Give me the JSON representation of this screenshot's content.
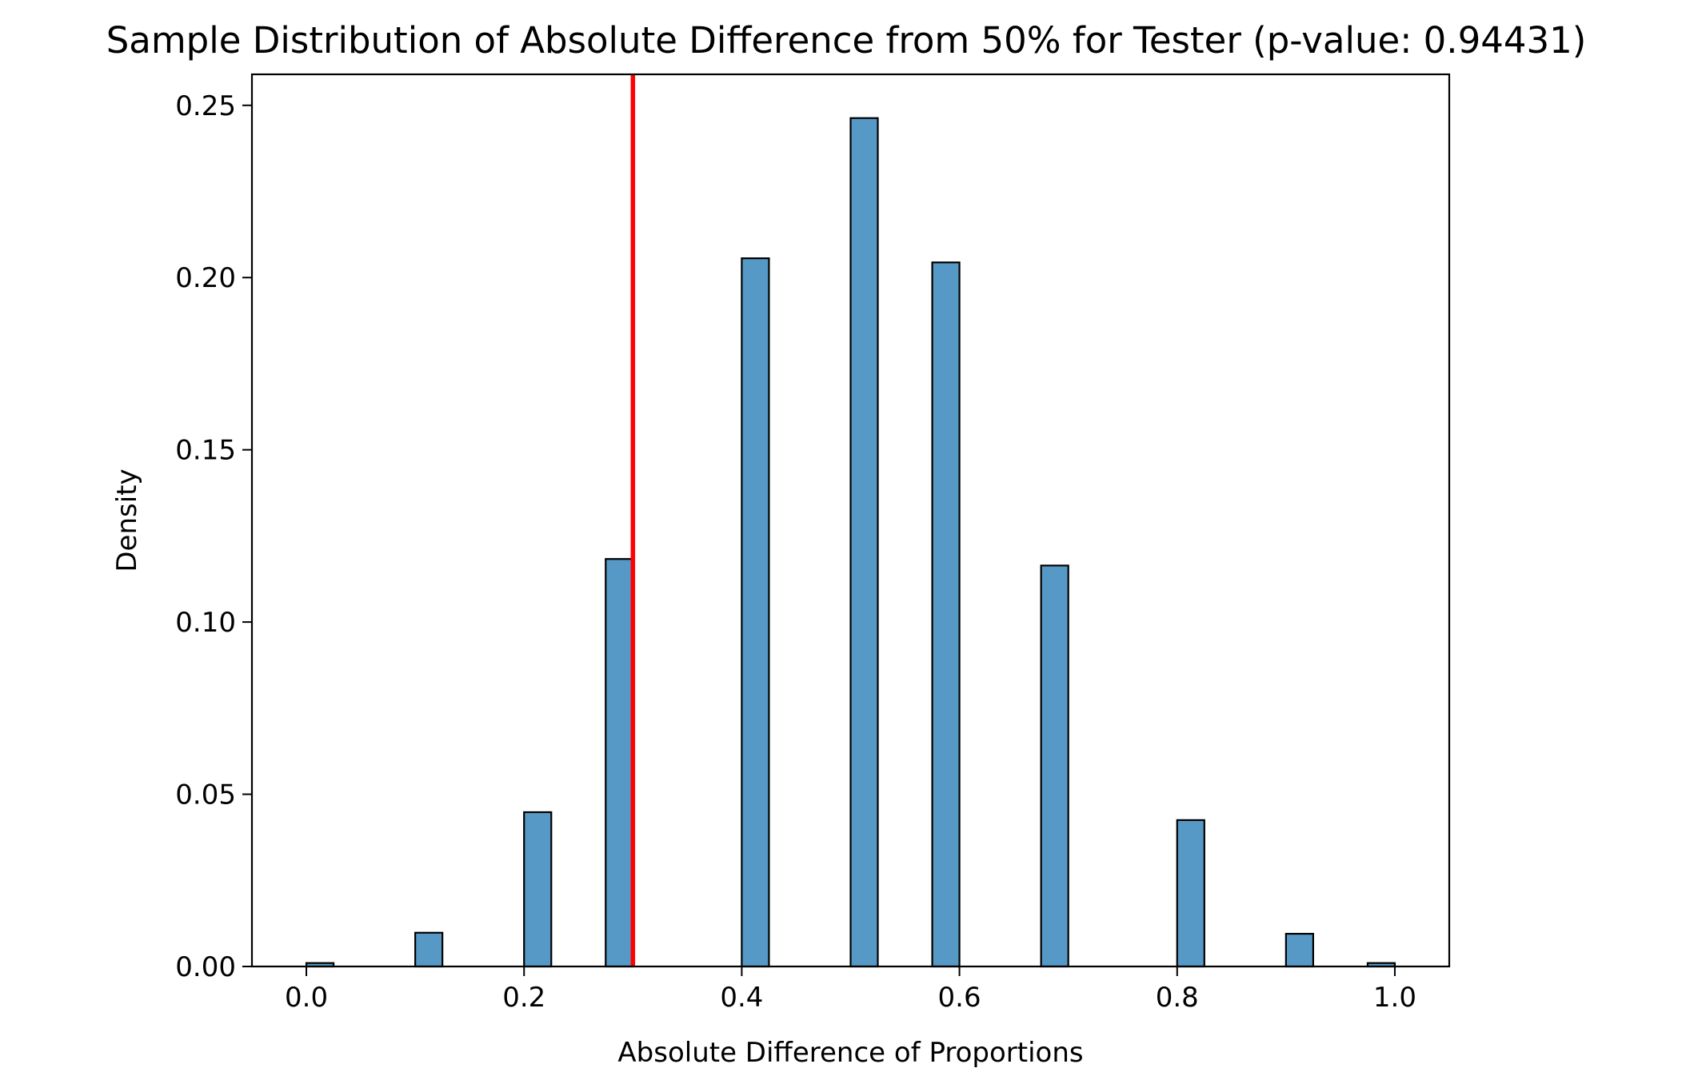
{
  "chart_data": {
    "type": "bar",
    "title": "Sample Distribution of Absolute Difference from 50% for Tester (p-value: 0.94431)",
    "xlabel": "Absolute Difference of Proportions",
    "ylabel": "Density",
    "xlim": [
      -0.05,
      1.05
    ],
    "ylim": [
      0,
      0.259
    ],
    "grid": false,
    "bin_width": 0.025,
    "bar_color": "#5799c6",
    "bar_edge_color": "#000000",
    "marker_color": "#ff0000",
    "marker_x": 0.3,
    "x_ticks": [
      {
        "value": 0.0,
        "label": "0.0"
      },
      {
        "value": 0.2,
        "label": "0.2"
      },
      {
        "value": 0.4,
        "label": "0.4"
      },
      {
        "value": 0.6,
        "label": "0.6"
      },
      {
        "value": 0.8,
        "label": "0.8"
      },
      {
        "value": 1.0,
        "label": "1.0"
      }
    ],
    "y_ticks": [
      {
        "value": 0.0,
        "label": "0.00"
      },
      {
        "value": 0.05,
        "label": "0.05"
      },
      {
        "value": 0.1,
        "label": "0.10"
      },
      {
        "value": 0.15,
        "label": "0.15"
      },
      {
        "value": 0.2,
        "label": "0.20"
      },
      {
        "value": 0.25,
        "label": "0.25"
      }
    ],
    "bars": [
      {
        "x": 0.0,
        "value": 0.001
      },
      {
        "x": 0.1,
        "value": 0.0098
      },
      {
        "x": 0.2,
        "value": 0.0448
      },
      {
        "x": 0.275,
        "value": 0.1183
      },
      {
        "x": 0.4,
        "value": 0.2056
      },
      {
        "x": 0.5,
        "value": 0.2463
      },
      {
        "x": 0.575,
        "value": 0.2044
      },
      {
        "x": 0.675,
        "value": 0.1164
      },
      {
        "x": 0.8,
        "value": 0.0425
      },
      {
        "x": 0.9,
        "value": 0.0095
      },
      {
        "x": 0.975,
        "value": 0.001
      }
    ]
  }
}
